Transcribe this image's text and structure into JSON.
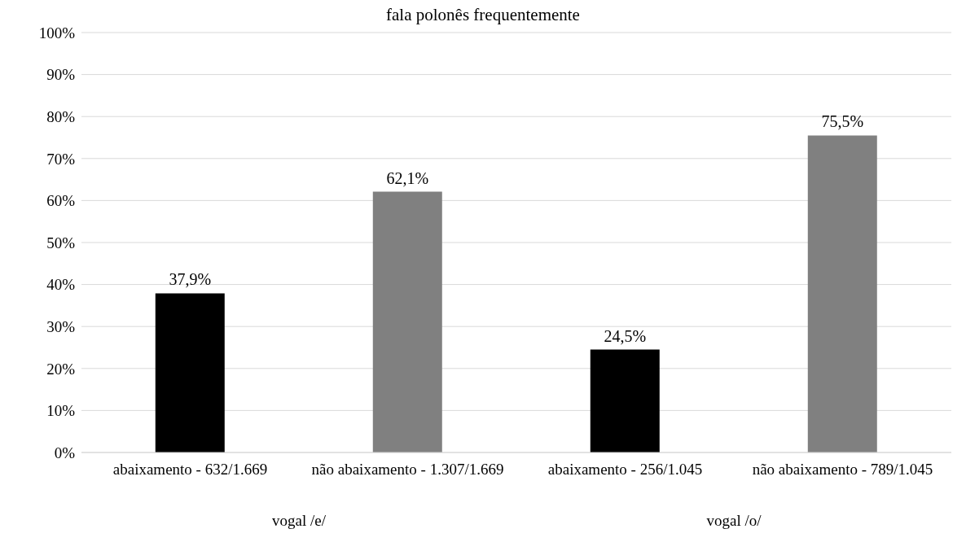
{
  "chart_data": {
    "type": "bar",
    "title": "fala polonês frequentemente",
    "categories": [
      "abaixamento - 632/1.669",
      "não abaixamento - 1.307/1.669",
      "abaixamento - 256/1.045",
      "não abaixamento - 789/1.045"
    ],
    "values": [
      37.9,
      62.1,
      24.5,
      75.5
    ],
    "colors": [
      "#000000",
      "#808080",
      "#000000",
      "#808080"
    ],
    "value_labels": [
      "37,9%",
      "62,1%",
      "24,5%",
      "75,5%"
    ],
    "ylim": [
      0,
      100
    ],
    "yticks": [
      {
        "value": 0,
        "label": "0%"
      },
      {
        "value": 10,
        "label": "10%"
      },
      {
        "value": 20,
        "label": "20%"
      },
      {
        "value": 30,
        "label": "30%"
      },
      {
        "value": 40,
        "label": "40%"
      },
      {
        "value": 50,
        "label": "50%"
      },
      {
        "value": 60,
        "label": "60%"
      },
      {
        "value": 70,
        "label": "70%"
      },
      {
        "value": 80,
        "label": "80%"
      },
      {
        "value": 90,
        "label": "90%"
      },
      {
        "value": 100,
        "label": "100%"
      }
    ],
    "grid": "y",
    "annotations": [
      "vogal /e/",
      "vogal /o/"
    ]
  }
}
